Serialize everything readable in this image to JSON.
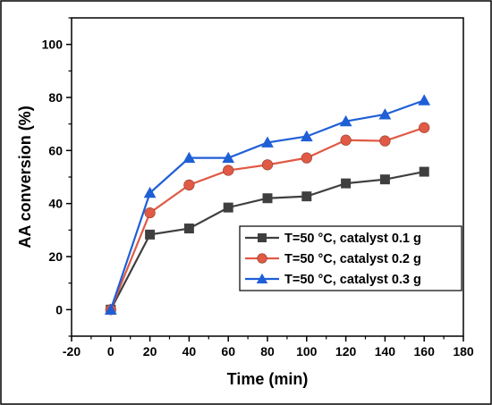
{
  "chart_data": {
    "type": "line",
    "xlabel": "Time (min)",
    "ylabel": "AA conversion (%)",
    "xlim": [
      -20,
      180
    ],
    "ylim": [
      -10,
      110
    ],
    "xticks": [
      -20,
      0,
      20,
      40,
      60,
      80,
      100,
      120,
      140,
      160,
      180
    ],
    "yticks": [
      0,
      20,
      40,
      60,
      80,
      100
    ],
    "grid": false,
    "legend_position": "bottom-right",
    "x": [
      0,
      20,
      40,
      60,
      80,
      100,
      120,
      140,
      160
    ],
    "series": [
      {
        "name": "T=50 °C, catalyst 0.1 g",
        "color": "#3f3f3f",
        "marker": "square",
        "values": [
          0,
          28.3,
          30.6,
          38.5,
          42.0,
          42.7,
          47.6,
          49.1,
          52.0
        ]
      },
      {
        "name": "T=50 °C, catalyst 0.2 g",
        "color": "#e05a45",
        "marker": "circle",
        "values": [
          0,
          36.5,
          47.0,
          52.5,
          54.6,
          57.2,
          63.9,
          63.6,
          68.6
        ]
      },
      {
        "name": "T=50 °C, catalyst 0.3 g",
        "color": "#1f5fd6",
        "marker": "triangle",
        "values": [
          0,
          44.0,
          57.2,
          57.2,
          63.0,
          65.3,
          71.0,
          73.6,
          78.9
        ]
      }
    ]
  }
}
